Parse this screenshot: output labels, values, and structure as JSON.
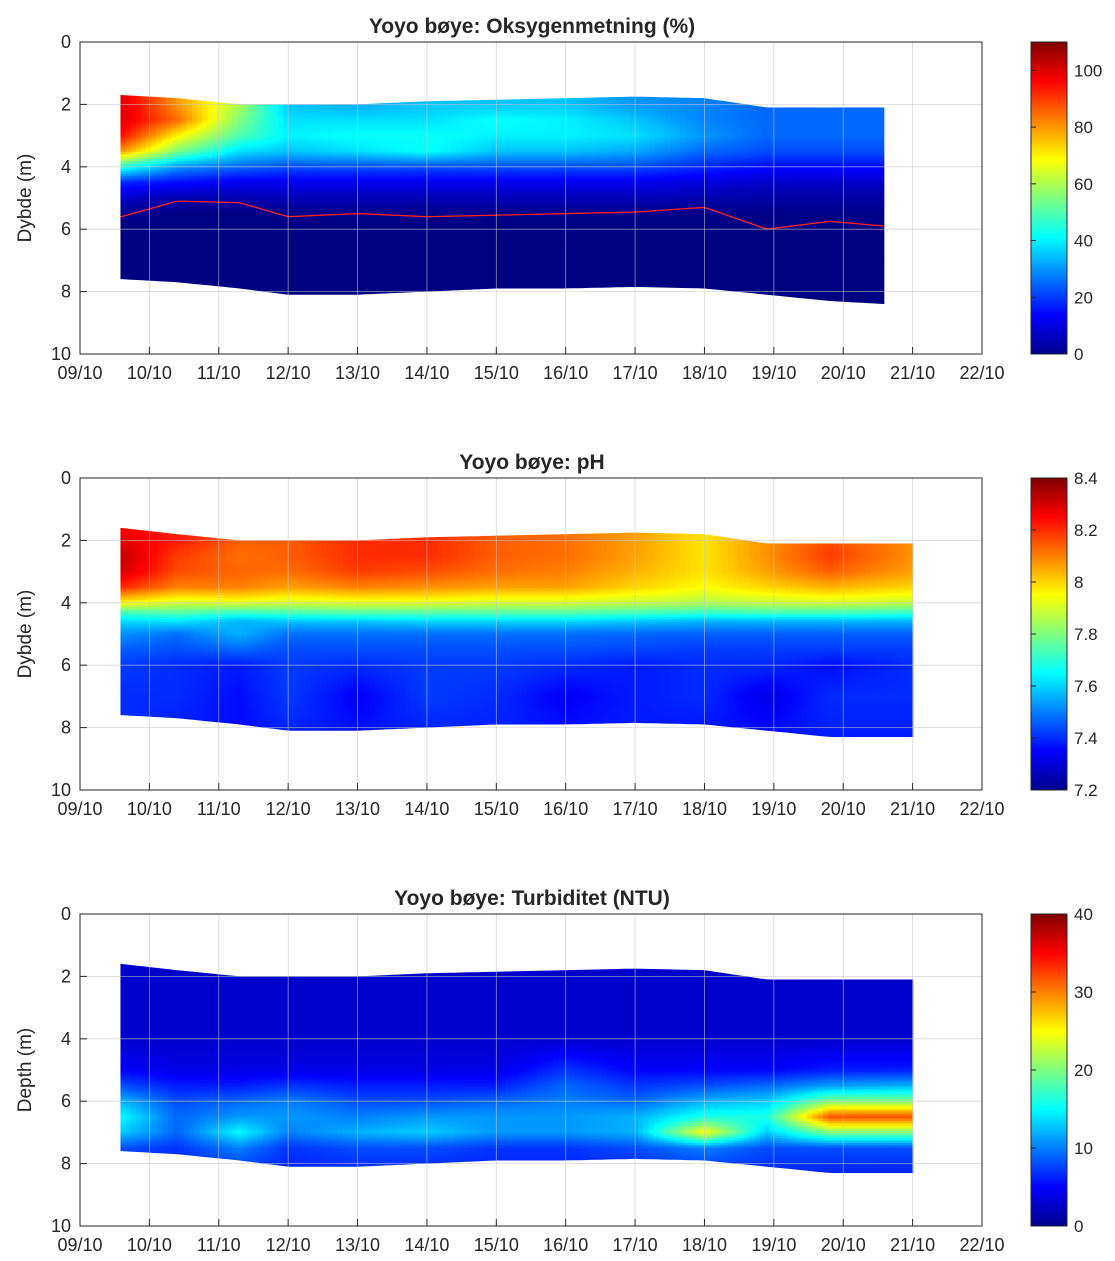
{
  "chart_data": [
    {
      "type": "heatmap",
      "title": "Yoyo bøye:  Oksygenmetning (%)",
      "xlabel": "",
      "ylabel": "Dybde (m)",
      "x_ticks": [
        "09/10",
        "10/10",
        "11/10",
        "12/10",
        "13/10",
        "14/10",
        "15/10",
        "16/10",
        "17/10",
        "18/10",
        "19/10",
        "20/10",
        "21/10",
        "22/10"
      ],
      "y_ticks": [
        "0",
        "2",
        "4",
        "6",
        "8",
        "10"
      ],
      "ylim": [
        0,
        10
      ],
      "y_reversed": true,
      "grid": true,
      "colormap": "jet",
      "clim": [
        0,
        110
      ],
      "colorbar_ticks": [
        "0",
        "20",
        "40",
        "60",
        "80",
        "100"
      ],
      "data_start": "09/10 14:00",
      "data_end": "20/10 14:00",
      "time_nodes": [
        9.6,
        10.4,
        11.3,
        12.0,
        13.0,
        14.0,
        15.0,
        16.0,
        17.0,
        18.0,
        18.9,
        19.8,
        20.6
      ],
      "top_depth": [
        1.7,
        1.8,
        2.0,
        2.0,
        2.0,
        1.9,
        1.85,
        1.8,
        1.75,
        1.8,
        2.1,
        2.1,
        2.1
      ],
      "bottom_depth": [
        7.6,
        7.7,
        7.9,
        8.1,
        8.1,
        8.0,
        7.9,
        7.9,
        7.85,
        7.9,
        8.1,
        8.3,
        8.4
      ],
      "red_line_depth": [
        5.6,
        5.1,
        5.15,
        5.6,
        5.5,
        5.6,
        5.55,
        5.5,
        5.45,
        5.3,
        6.0,
        5.75,
        5.9
      ],
      "value_grid": {
        "depths": [
          1.5,
          2.0,
          2.5,
          3.0,
          3.5,
          4.0,
          4.5,
          5.0,
          5.5,
          6.0,
          7.0,
          8.5
        ],
        "values": [
          [
            100,
            80,
            60,
            35,
            32,
            35,
            35,
            35,
            30,
            28,
            25,
            25,
            25
          ],
          [
            100,
            80,
            60,
            35,
            32,
            35,
            35,
            35,
            30,
            28,
            25,
            25,
            25
          ],
          [
            100,
            85,
            55,
            38,
            38,
            38,
            42,
            40,
            35,
            28,
            25,
            25,
            25
          ],
          [
            95,
            70,
            50,
            40,
            42,
            42,
            40,
            40,
            38,
            30,
            25,
            25,
            25
          ],
          [
            80,
            55,
            38,
            35,
            38,
            42,
            35,
            35,
            32,
            25,
            22,
            22,
            22
          ],
          [
            45,
            30,
            25,
            22,
            22,
            22,
            22,
            22,
            22,
            18,
            15,
            15,
            15
          ],
          [
            18,
            15,
            12,
            12,
            12,
            12,
            12,
            12,
            12,
            10,
            8,
            8,
            8
          ],
          [
            8,
            5,
            5,
            6,
            6,
            6,
            6,
            6,
            6,
            5,
            4,
            4,
            4
          ],
          [
            2,
            0.5,
            0.5,
            1,
            1,
            1,
            1,
            1,
            1,
            1,
            1,
            1,
            1
          ],
          [
            0.3,
            0.3,
            0.3,
            0.3,
            0.3,
            0.3,
            0.3,
            0.3,
            0.3,
            0.3,
            0.3,
            0.3,
            0.3
          ],
          [
            0,
            0,
            0,
            0,
            0,
            0,
            0,
            0,
            0,
            0,
            0,
            0,
            0
          ],
          [
            0,
            0,
            0,
            0,
            0,
            0,
            0,
            0,
            0,
            0,
            0,
            0,
            0
          ]
        ]
      }
    },
    {
      "type": "heatmap",
      "title": "Yoyo bøye:  pH",
      "xlabel": "",
      "ylabel": "Dybde (m)",
      "x_ticks": [
        "09/10",
        "10/10",
        "11/10",
        "12/10",
        "13/10",
        "14/10",
        "15/10",
        "16/10",
        "17/10",
        "18/10",
        "19/10",
        "20/10",
        "21/10",
        "22/10"
      ],
      "y_ticks": [
        "0",
        "2",
        "4",
        "6",
        "8",
        "10"
      ],
      "ylim": [
        0,
        10
      ],
      "y_reversed": true,
      "grid": true,
      "colormap": "jet",
      "clim": [
        7.2,
        8.4
      ],
      "colorbar_ticks": [
        "7.2",
        "7.4",
        "7.6",
        "7.8",
        "8",
        "8.2",
        "8.4"
      ],
      "data_start": "09/10 14:00",
      "data_end": "21/10 00:00",
      "time_nodes": [
        9.6,
        10.4,
        11.3,
        12.0,
        13.0,
        14.0,
        15.0,
        16.0,
        17.0,
        18.0,
        18.9,
        19.8,
        21.0
      ],
      "top_depth": [
        1.6,
        1.8,
        2.0,
        2.0,
        2.0,
        1.9,
        1.85,
        1.8,
        1.75,
        1.8,
        2.1,
        2.1,
        2.1
      ],
      "bottom_depth": [
        7.6,
        7.7,
        7.9,
        8.1,
        8.1,
        8.0,
        7.9,
        7.9,
        7.85,
        7.9,
        8.1,
        8.3,
        8.3
      ],
      "value_grid": {
        "depths": [
          1.5,
          2.0,
          2.5,
          3.0,
          3.5,
          4.0,
          4.3,
          4.6,
          5.0,
          5.5,
          6.0,
          7.0,
          8.5
        ],
        "values": [
          [
            8.26,
            8.2,
            8.14,
            8.12,
            8.19,
            8.18,
            8.14,
            8.12,
            8.06,
            7.98,
            8.06,
            8.16,
            8.08
          ],
          [
            8.28,
            8.22,
            8.14,
            8.14,
            8.2,
            8.2,
            8.14,
            8.12,
            8.06,
            7.98,
            8.08,
            8.16,
            8.08
          ],
          [
            8.32,
            8.18,
            8.12,
            8.14,
            8.2,
            8.2,
            8.14,
            8.12,
            8.06,
            7.98,
            8.08,
            8.18,
            8.08
          ],
          [
            8.3,
            8.16,
            8.13,
            8.12,
            8.18,
            8.16,
            8.12,
            8.1,
            8.04,
            7.98,
            8.06,
            8.14,
            8.06
          ],
          [
            8.2,
            8.1,
            8.1,
            8.06,
            8.1,
            8.08,
            8.06,
            8.06,
            8.0,
            7.95,
            8.0,
            8.04,
            8.0
          ],
          [
            7.96,
            7.9,
            7.92,
            7.9,
            7.92,
            7.92,
            7.9,
            7.9,
            7.88,
            7.86,
            7.88,
            7.9,
            7.88
          ],
          [
            7.74,
            7.76,
            7.72,
            7.74,
            7.76,
            7.76,
            7.76,
            7.76,
            7.74,
            7.72,
            7.74,
            7.74,
            7.72
          ],
          [
            7.6,
            7.62,
            7.56,
            7.58,
            7.58,
            7.6,
            7.6,
            7.6,
            7.58,
            7.56,
            7.56,
            7.56,
            7.56
          ],
          [
            7.52,
            7.48,
            7.56,
            7.48,
            7.48,
            7.48,
            7.48,
            7.48,
            7.47,
            7.46,
            7.46,
            7.46,
            7.46
          ],
          [
            7.46,
            7.44,
            7.47,
            7.44,
            7.44,
            7.44,
            7.44,
            7.44,
            7.43,
            7.42,
            7.42,
            7.42,
            7.42
          ],
          [
            7.42,
            7.4,
            7.38,
            7.42,
            7.4,
            7.42,
            7.42,
            7.4,
            7.38,
            7.4,
            7.4,
            7.36,
            7.4
          ],
          [
            7.4,
            7.4,
            7.36,
            7.42,
            7.34,
            7.42,
            7.4,
            7.34,
            7.38,
            7.4,
            7.32,
            7.4,
            7.4
          ],
          [
            7.4,
            7.38,
            7.36,
            7.38,
            7.38,
            7.38,
            7.38,
            7.38,
            7.38,
            7.36,
            7.38,
            7.38,
            7.38
          ]
        ]
      }
    },
    {
      "type": "heatmap",
      "title": "Yoyo bøye:  Turbiditet (NTU)",
      "xlabel": "",
      "ylabel": "Depth (m)",
      "x_ticks": [
        "09/10",
        "10/10",
        "11/10",
        "12/10",
        "13/10",
        "14/10",
        "15/10",
        "16/10",
        "17/10",
        "18/10",
        "19/10",
        "20/10",
        "21/10",
        "22/10"
      ],
      "y_ticks": [
        "0",
        "2",
        "4",
        "6",
        "8",
        "10"
      ],
      "ylim": [
        0,
        10
      ],
      "y_reversed": true,
      "grid": true,
      "colormap": "jet",
      "clim": [
        0,
        40
      ],
      "colorbar_ticks": [
        "0",
        "10",
        "20",
        "30",
        "40"
      ],
      "data_start": "09/10 14:00",
      "data_end": "21/10 00:00",
      "time_nodes": [
        9.6,
        10.4,
        11.3,
        12.0,
        13.0,
        14.0,
        15.0,
        16.0,
        17.0,
        18.0,
        18.9,
        19.8,
        21.0
      ],
      "top_depth": [
        1.6,
        1.8,
        2.0,
        2.0,
        2.0,
        1.9,
        1.85,
        1.8,
        1.75,
        1.8,
        2.1,
        2.1,
        2.1
      ],
      "bottom_depth": [
        7.6,
        7.7,
        7.9,
        8.1,
        8.1,
        8.0,
        7.9,
        7.9,
        7.85,
        7.9,
        8.1,
        8.3,
        8.3
      ],
      "value_grid": {
        "depths": [
          1.5,
          2.0,
          3.0,
          4.0,
          5.0,
          5.5,
          6.0,
          6.5,
          7.0,
          7.5,
          8.5
        ],
        "values": [
          [
            3,
            3,
            3,
            3,
            3,
            3,
            3,
            3,
            3,
            3,
            3,
            3,
            3
          ],
          [
            3,
            3,
            3,
            3,
            3,
            3,
            3,
            3,
            3,
            3,
            3,
            3,
            3
          ],
          [
            3,
            3,
            3,
            3,
            3,
            3,
            3,
            3,
            3,
            3,
            3,
            3,
            3
          ],
          [
            3,
            3,
            3,
            3,
            3,
            3,
            3,
            3,
            3,
            3,
            3,
            3,
            3
          ],
          [
            5,
            4,
            4,
            4,
            4,
            4,
            4,
            7,
            5,
            5,
            5,
            6,
            6
          ],
          [
            8,
            6,
            6,
            7,
            6,
            6,
            6,
            9,
            7,
            8,
            9,
            11,
            12
          ],
          [
            12,
            8,
            9,
            10,
            8,
            8,
            9,
            10,
            9,
            12,
            13,
            20,
            20
          ],
          [
            15,
            9,
            11,
            11,
            10,
            11,
            11,
            11,
            12,
            16,
            16,
            32,
            32
          ],
          [
            13,
            9,
            15,
            10,
            12,
            13,
            11,
            11,
            12,
            25,
            13,
            20,
            20
          ],
          [
            8,
            7,
            10,
            7,
            8,
            8,
            7,
            7,
            8,
            10,
            8,
            8,
            8
          ],
          [
            6,
            6,
            6,
            6,
            6,
            6,
            6,
            6,
            6,
            6,
            6,
            6,
            6
          ]
        ]
      }
    }
  ]
}
